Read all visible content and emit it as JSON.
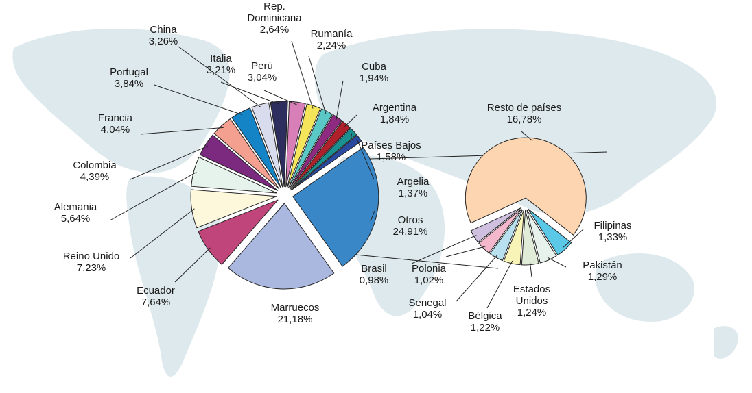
{
  "chart_data": [
    {
      "type": "pie",
      "categories": [
        "Otros",
        "Marruecos",
        "Ecuador",
        "Reino Unido",
        "Alemania",
        "Colombia",
        "Francia",
        "Portugal",
        "China",
        "Italia",
        "Perú",
        "Rep. Dominicana",
        "Rumanía",
        "Cuba",
        "Argentina",
        "Países Bajos",
        "Argelia"
      ],
      "values": [
        24.91,
        21.18,
        7.64,
        7.23,
        5.64,
        4.39,
        4.04,
        3.84,
        3.26,
        3.21,
        3.04,
        2.64,
        2.24,
        1.94,
        1.84,
        1.58,
        1.37
      ],
      "value_labels": [
        "24,91%",
        "21,18%",
        "7,64%",
        "7,23%",
        "5,64%",
        "4,39%",
        "4,04%",
        "3,84%",
        "3,26%",
        "3,21%",
        "3,04%",
        "2,64%",
        "2,24%",
        "1,94%",
        "1,84%",
        "1,58%",
        "1,37%"
      ],
      "colors": [
        "#3a87c8",
        "#aab8e0",
        "#c0457a",
        "#fdf8dc",
        "#e6f2ec",
        "#7b2a80",
        "#f4a090",
        "#1584c7",
        "#d8dcec",
        "#2e2e5e",
        "#d87fb8",
        "#f5e55a",
        "#5bc8c8",
        "#8e2a80",
        "#b0202a",
        "#1a9090",
        "#2a4aa0"
      ]
    },
    {
      "type": "pie",
      "categories": [
        "Filipinas",
        "Pakistán",
        "Estados Unidos",
        "Bélgica",
        "Senegal",
        "Polonia",
        "Brasil",
        "Resto de países"
      ],
      "values": [
        1.33,
        1.29,
        1.24,
        1.22,
        1.04,
        1.02,
        0.98,
        16.78
      ],
      "value_labels": [
        "1,33%",
        "1,29%",
        "1,24%",
        "1,22%",
        "1,04%",
        "1,02%",
        "0,98%",
        "16,78%"
      ],
      "colors": [
        "#5bc8e8",
        "#e8f2ec",
        "#e0ecd8",
        "#f8f4b8",
        "#b8e0ee",
        "#f4b8cc",
        "#d0c0e0",
        "#fdd5b0"
      ]
    }
  ]
}
